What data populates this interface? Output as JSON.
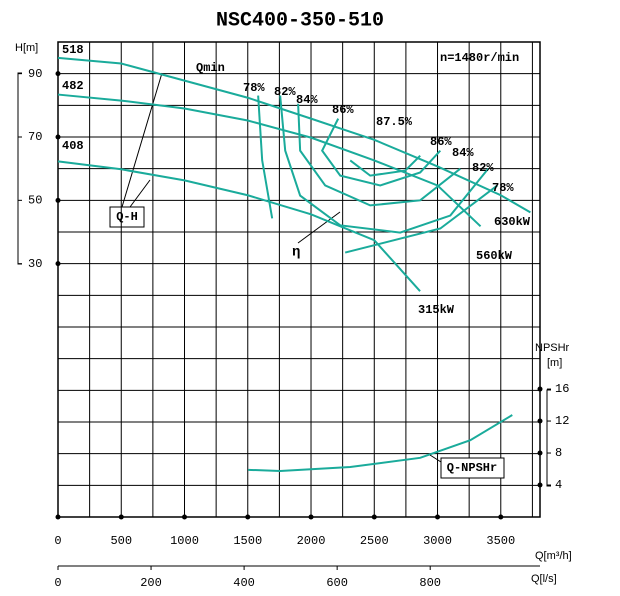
{
  "chart_data": {
    "type": "line",
    "title": "NSC400-350-510",
    "speed_label": "n=1480r/min",
    "xlabel": "Q[m³/h]",
    "x2label": "Q[l/s]",
    "ylabel": "H[m]",
    "y2label": "NPSHr",
    "y2unit": "[m]",
    "annotations": {
      "qmin": "Qmin",
      "qh": "Q-H",
      "eta": "η"
    },
    "xlim": [
      0,
      3810
    ],
    "xticks": [
      0,
      500,
      1000,
      1500,
      2000,
      2500,
      3000,
      3500
    ],
    "x2lim": [
      0,
      1036
    ],
    "x2ticks": [
      0,
      200,
      400,
      600,
      800
    ],
    "ylim": [
      -50,
      100
    ],
    "yticks": [
      30,
      50,
      70,
      90
    ],
    "y2lim": [
      0,
      59.4
    ],
    "y2ticks": [
      4,
      8,
      12,
      16
    ],
    "grid": true,
    "grid_x": [
      250,
      500,
      750,
      1000,
      1250,
      1500,
      1750,
      2000,
      2250,
      2500,
      2750,
      3000,
      3250,
      3500,
      3750
    ],
    "grid_y": [
      -40,
      -30,
      -20,
      -10,
      0,
      10,
      20,
      30,
      40,
      50,
      60,
      70,
      80,
      90
    ],
    "color": "#1aab9b",
    "series": [
      {
        "name": "518",
        "end_label": "630kW",
        "x": [
          0,
          500,
          1000,
          1500,
          2000,
          2500,
          3000,
          3500,
          3734
        ],
        "values": [
          95,
          93.2,
          87.8,
          82.4,
          75.8,
          69.1,
          60.7,
          51.6,
          46.2
        ]
      },
      {
        "name": "482",
        "end_label": "560kW",
        "x": [
          0,
          500,
          1000,
          1500,
          2000,
          2500,
          3000,
          3340
        ],
        "values": [
          83.4,
          81.5,
          79,
          75.2,
          69.8,
          62.6,
          54.7,
          41.8
        ]
      },
      {
        "name": "408",
        "end_label": "315kW",
        "x": [
          0,
          500,
          1000,
          1500,
          2000,
          2500,
          2862
        ],
        "values": [
          62.3,
          59.8,
          56.3,
          51.6,
          45.6,
          37.4,
          21.3
        ]
      },
      {
        "name": "78%",
        "x": [
          1582,
          1614,
          1693,
          null,
          2270,
          3022,
          3473
        ],
        "values": [
          83.1,
          62.6,
          44.3,
          null,
          33.5,
          41.1,
          54.7
        ]
      },
      {
        "name": "82%",
        "x": [
          1756,
          1796,
          1914,
          2231,
          2705,
          3101,
          3401
        ],
        "values": [
          83.1,
          65.7,
          51.5,
          42.1,
          39.8,
          45.2,
          60.0
        ]
      },
      {
        "name": "84%",
        "x": [
          1898,
          1914,
          2112,
          2468,
          2863,
          3180
        ],
        "values": [
          80.5,
          65.7,
          54.7,
          48.4,
          50.0,
          60.0
        ]
      },
      {
        "name": "86%",
        "x": [
          2215,
          2088,
          2231,
          2547,
          2863,
          3022
        ],
        "values": [
          75.8,
          65.7,
          57.8,
          54.7,
          58.8,
          65.7
        ]
      },
      {
        "name": "87.5%",
        "x": [
          2310,
          2468,
          2745,
          2863
        ],
        "values": [
          62.6,
          57.8,
          59.4,
          64.1
        ]
      },
      {
        "name": "Q-NPSHr",
        "axis": "y2",
        "x": [
          1503,
          1756,
          2310,
          2863,
          3259,
          3591
        ],
        "values": [
          5.9,
          5.75,
          6.25,
          7.4,
          9.6,
          12.75
        ]
      }
    ]
  }
}
